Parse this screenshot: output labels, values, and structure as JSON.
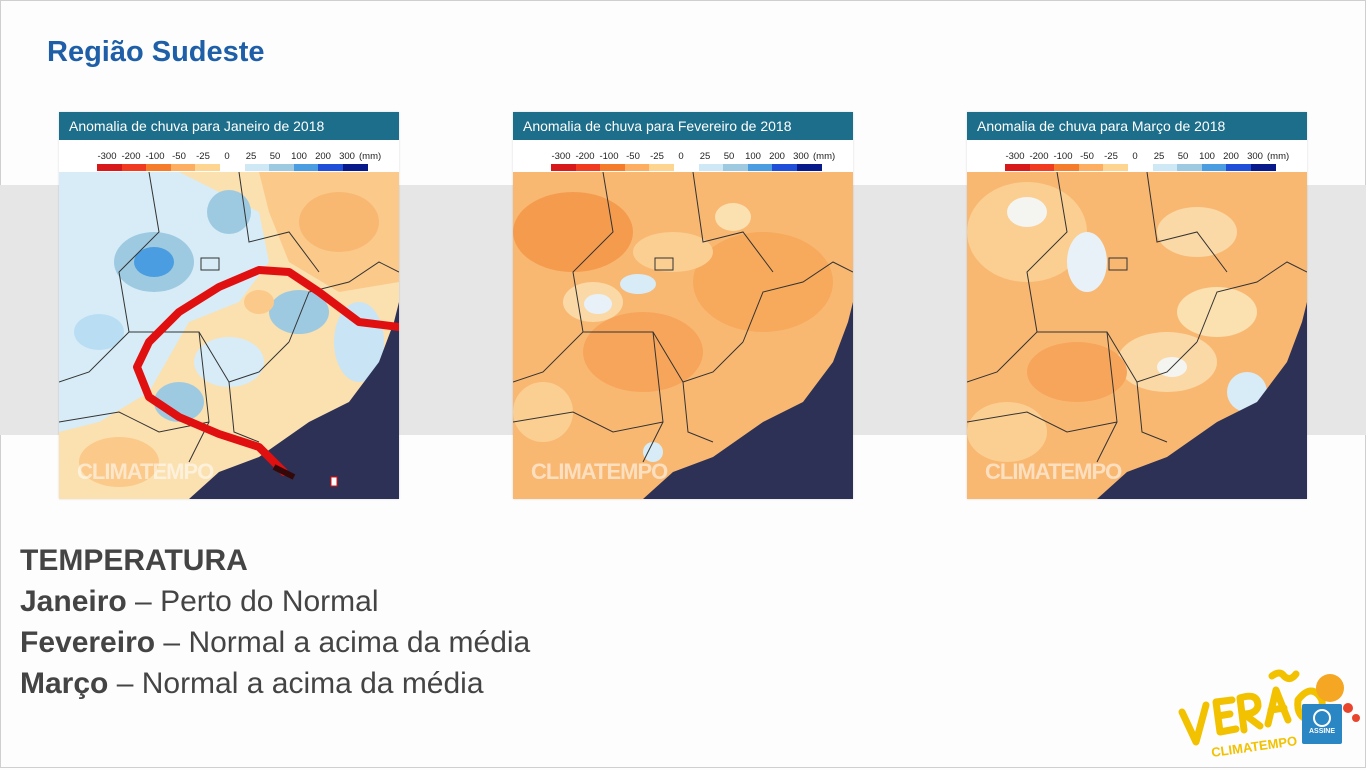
{
  "slide": {
    "title": "Região Sudeste"
  },
  "maps": [
    {
      "title": "Anomalia de chuva para Janeiro de 2018",
      "watermark": "CLIMATEMPO",
      "annotated": true
    },
    {
      "title": "Anomalia de chuva para Fevereiro de 2018",
      "watermark": "CLIMATEMPO",
      "annotated": false
    },
    {
      "title": "Anomalia de chuva para Março de 2018",
      "watermark": "CLIMATEMPO",
      "annotated": false
    }
  ],
  "legend": {
    "labels": [
      "-300",
      "-200",
      "-100",
      "-50",
      "-25",
      "0",
      "25",
      "50",
      "100",
      "200",
      "300"
    ],
    "unit": "(mm)",
    "colors": [
      "#d7191c",
      "#f03b20",
      "#f57c2a",
      "#fdae61",
      "#fed590",
      "#ffffff",
      "#cfe8f6",
      "#9ecae1",
      "#4a9de0",
      "#1f4fd8",
      "#08198a"
    ]
  },
  "temperature": {
    "heading": "TEMPERATURA",
    "rows": [
      {
        "month": "Janeiro",
        "sep": " – ",
        "desc": "Perto do Normal"
      },
      {
        "month": "Fevereiro",
        "sep": " – ",
        "desc": "Normal a acima da média"
      },
      {
        "month": "Março",
        "sep": " – ",
        "desc": "Normal a acima da média"
      }
    ]
  },
  "branding": {
    "logo_word": "VERÃO",
    "logo_sub": "CLIMATEMPO",
    "badge_label": "ASSINE",
    "accent_color": "#f2c100",
    "badge_color": "#2b86c4"
  }
}
